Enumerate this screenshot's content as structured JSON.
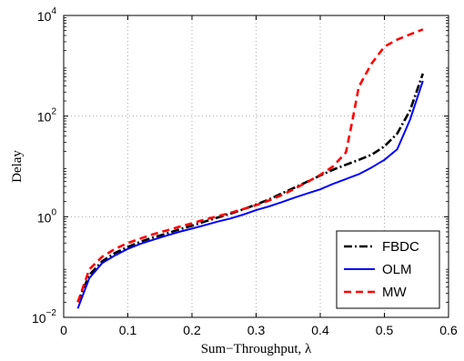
{
  "chart_data": {
    "type": "line",
    "title": "",
    "xlabel": "Sum−Throughput, λ",
    "ylabel": "Delay",
    "xlim": [
      0,
      0.6
    ],
    "ylim": [
      0.01,
      10000
    ],
    "yscale": "log",
    "grid": true,
    "legend_position": "bottom-right",
    "x_ticks": [
      0,
      0.1,
      0.2,
      0.3,
      0.4,
      0.5,
      0.6
    ],
    "x_tick_labels": [
      "0",
      "0.1",
      "0.2",
      "0.3",
      "0.4",
      "0.5",
      "0.6"
    ],
    "y_ticks": [
      0.01,
      1,
      100,
      10000
    ],
    "y_tick_labels": [
      {
        "base": "10",
        "exp": "−2"
      },
      {
        "base": "10",
        "exp": "0"
      },
      {
        "base": "10",
        "exp": "2"
      },
      {
        "base": "10",
        "exp": "4"
      }
    ],
    "series": [
      {
        "name": "FBDC",
        "color": "#000000",
        "dash": "dashdot",
        "x": [
          0.022,
          0.04,
          0.06,
          0.08,
          0.1,
          0.12,
          0.14,
          0.16,
          0.18,
          0.2,
          0.22,
          0.24,
          0.26,
          0.28,
          0.3,
          0.32,
          0.34,
          0.36,
          0.38,
          0.4,
          0.42,
          0.44,
          0.46,
          0.48,
          0.5,
          0.52,
          0.54,
          0.56
        ],
        "y": [
          0.02,
          0.07,
          0.13,
          0.19,
          0.25,
          0.32,
          0.39,
          0.46,
          0.56,
          0.66,
          0.8,
          0.96,
          1.15,
          1.4,
          1.75,
          2.2,
          2.9,
          3.8,
          5.0,
          6.6,
          8.6,
          10.8,
          13.5,
          17.0,
          25.0,
          45.0,
          130.0,
          700.0
        ]
      },
      {
        "name": "OLM",
        "color": "#0000ff",
        "dash": "solid",
        "x": [
          0.022,
          0.04,
          0.06,
          0.08,
          0.1,
          0.12,
          0.14,
          0.16,
          0.18,
          0.2,
          0.22,
          0.24,
          0.26,
          0.28,
          0.3,
          0.32,
          0.34,
          0.36,
          0.38,
          0.4,
          0.42,
          0.44,
          0.46,
          0.48,
          0.5,
          0.52,
          0.54,
          0.56
        ],
        "y": [
          0.015,
          0.06,
          0.12,
          0.17,
          0.23,
          0.29,
          0.35,
          0.42,
          0.5,
          0.58,
          0.68,
          0.8,
          0.92,
          1.1,
          1.35,
          1.6,
          1.95,
          2.4,
          2.9,
          3.5,
          4.5,
          5.6,
          7.0,
          9.5,
          13.5,
          22.0,
          85.0,
          500.0
        ]
      },
      {
        "name": "MW",
        "color": "#ff0000",
        "dash": "dashed",
        "x": [
          0.022,
          0.04,
          0.06,
          0.08,
          0.1,
          0.12,
          0.14,
          0.16,
          0.18,
          0.2,
          0.22,
          0.24,
          0.26,
          0.28,
          0.3,
          0.32,
          0.34,
          0.36,
          0.38,
          0.4,
          0.42,
          0.44,
          0.45,
          0.46,
          0.48,
          0.5,
          0.52,
          0.54,
          0.56
        ],
        "y": [
          0.02,
          0.09,
          0.16,
          0.23,
          0.3,
          0.37,
          0.45,
          0.53,
          0.63,
          0.74,
          0.88,
          1.02,
          1.2,
          1.42,
          1.7,
          2.1,
          2.7,
          3.6,
          4.9,
          6.8,
          10.0,
          19.0,
          80.0,
          380.0,
          1100.0,
          2400.0,
          3300.0,
          4200.0,
          5300.0
        ]
      }
    ]
  }
}
